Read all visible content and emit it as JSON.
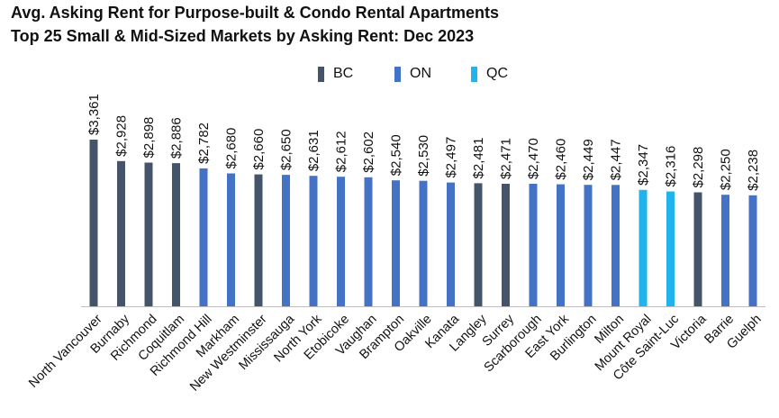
{
  "chart_data": {
    "type": "bar",
    "title": "Avg. Asking Rent for Purpose-built & Condo Rental Apartments",
    "subtitle": "Top 25 Small & Mid-Sized Markets by Asking Rent: Dec 2023",
    "xlabel": "",
    "ylabel": "",
    "ylim": [
      0,
      3600
    ],
    "grid": false,
    "legend": {
      "position": "top-center",
      "entries": [
        {
          "name": "BC",
          "color": "#44546a"
        },
        {
          "name": "ON",
          "color": "#4472c4"
        },
        {
          "name": "QC",
          "color": "#1fb4ec"
        }
      ]
    },
    "categories": [
      "North Vancouver",
      "Burnaby",
      "Richmond",
      "Coquitlam",
      "Richmond Hill",
      "Markham",
      "New Westminster",
      "Mississauga",
      "North York",
      "Etobicoke",
      "Vaughan",
      "Brampton",
      "Oakville",
      "Kanata",
      "Langley",
      "Surrey",
      "Scarborough",
      "East York",
      "Burlington",
      "Milton",
      "Mount Royal",
      "Côte Saint-Luc",
      "Victoria",
      "Barrie",
      "Guelph"
    ],
    "values": [
      3361,
      2928,
      2898,
      2886,
      2782,
      2680,
      2660,
      2650,
      2631,
      2612,
      2602,
      2540,
      2530,
      2497,
      2481,
      2471,
      2470,
      2460,
      2449,
      2447,
      2347,
      2316,
      2298,
      2250,
      2238
    ],
    "labels": [
      "$3,361",
      "$2,928",
      "$2,898",
      "$2,886",
      "$2,782",
      "$2,680",
      "$2,660",
      "$2,650",
      "$2,631",
      "$2,612",
      "$2,602",
      "$2,540",
      "$2,530",
      "$2,497",
      "$2,481",
      "$2,471",
      "$2,470",
      "$2,460",
      "$2,449",
      "$2,447",
      "$2,347",
      "$2,316",
      "$2,298",
      "$2,250",
      "$2,238"
    ],
    "groups": [
      "BC",
      "BC",
      "BC",
      "BC",
      "ON",
      "ON",
      "BC",
      "ON",
      "ON",
      "ON",
      "ON",
      "ON",
      "ON",
      "ON",
      "BC",
      "BC",
      "ON",
      "ON",
      "ON",
      "ON",
      "QC",
      "QC",
      "BC",
      "ON",
      "ON"
    ]
  }
}
